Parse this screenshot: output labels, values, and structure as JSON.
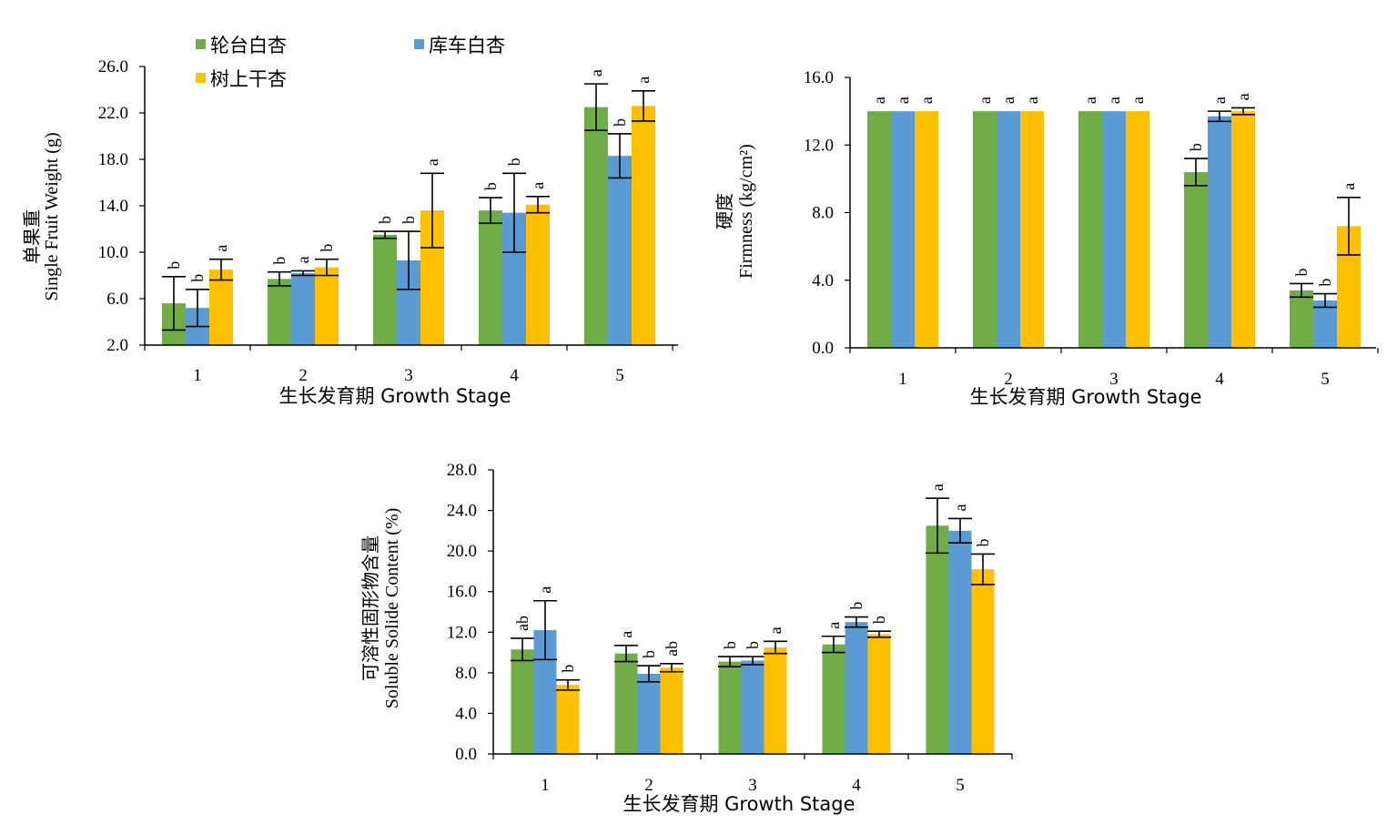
{
  "legend": [
    {
      "label": "轮台白杏",
      "color": "#70AD47"
    },
    {
      "label": "库车白杏",
      "color": "#5B9BD5"
    },
    {
      "label": "树上干杏",
      "color": "#FFC000"
    }
  ],
  "chart_data": [
    {
      "type": "bar",
      "categories": [
        "1",
        "2",
        "3",
        "4",
        "5"
      ],
      "xlabel": "生长发育期  Growth  Stage",
      "ylabel_cn": "单果重",
      "ylabel_en": "Single Fruit Weight (g)",
      "ylim": [
        2.0,
        26.0
      ],
      "yticks": [
        "2.0",
        "6.0",
        "10.0",
        "14.0",
        "18.0",
        "22.0",
        "26.0"
      ],
      "series": [
        {
          "name": "轮台白杏",
          "color": "#70AD47",
          "values": [
            5.6,
            7.7,
            11.5,
            13.6,
            22.5
          ],
          "errors": [
            2.3,
            0.6,
            0.3,
            1.1,
            2.0
          ],
          "labels": [
            "b",
            "b",
            "b",
            "b",
            "a"
          ]
        },
        {
          "name": "库车白杏",
          "color": "#5B9BD5",
          "values": [
            5.2,
            8.2,
            9.3,
            13.4,
            18.3
          ],
          "errors": [
            1.6,
            0.2,
            2.5,
            3.4,
            1.9
          ],
          "labels": [
            "b",
            "a",
            "b",
            "b",
            "b"
          ]
        },
        {
          "name": "树上干杏",
          "color": "#FFC000",
          "values": [
            8.5,
            8.7,
            13.6,
            14.1,
            22.6
          ],
          "errors": [
            0.9,
            0.7,
            3.2,
            0.7,
            1.3
          ],
          "labels": [
            "a",
            "b",
            "a",
            "a",
            "a"
          ]
        }
      ]
    },
    {
      "type": "bar",
      "categories": [
        "1",
        "2",
        "3",
        "4",
        "5"
      ],
      "xlabel": "生长发育期  Growth  Stage",
      "ylabel_cn": "硬度",
      "ylabel_en": "Firmness (kg/cm²)",
      "ylim": [
        0.0,
        16.0
      ],
      "yticks": [
        "0.0",
        "4.0",
        "8.0",
        "12.0",
        "16.0"
      ],
      "series": [
        {
          "name": "轮台白杏",
          "color": "#70AD47",
          "values": [
            14.0,
            14.0,
            14.0,
            10.4,
            3.4
          ],
          "errors": [
            0,
            0,
            0,
            0.8,
            0.4
          ],
          "labels": [
            "a",
            "a",
            "a",
            "b",
            "b"
          ]
        },
        {
          "name": "库车白杏",
          "color": "#5B9BD5",
          "values": [
            14.0,
            14.0,
            14.0,
            13.7,
            2.8
          ],
          "errors": [
            0,
            0,
            0,
            0.3,
            0.4
          ],
          "labels": [
            "a",
            "a",
            "a",
            "a",
            "b"
          ]
        },
        {
          "name": "树上干杏",
          "color": "#FFC000",
          "values": [
            14.0,
            14.0,
            14.0,
            14.0,
            7.2
          ],
          "errors": [
            0,
            0,
            0,
            0.2,
            1.7
          ],
          "labels": [
            "a",
            "a",
            "a",
            "a",
            "a"
          ]
        }
      ]
    },
    {
      "type": "bar",
      "categories": [
        "1",
        "2",
        "3",
        "4",
        "5"
      ],
      "xlabel": "生长发育期  Growth  Stage",
      "ylabel_cn": "可溶性固形物含量",
      "ylabel_en": "Soluble Solide Content (%)",
      "ylim": [
        0.0,
        28.0
      ],
      "yticks": [
        "0.0",
        "4.0",
        "8.0",
        "12.0",
        "16.0",
        "20.0",
        "24.0",
        "28.0"
      ],
      "series": [
        {
          "name": "轮台白杏",
          "color": "#70AD47",
          "values": [
            10.3,
            9.9,
            9.1,
            10.8,
            22.5
          ],
          "errors": [
            1.1,
            0.8,
            0.5,
            0.8,
            2.7
          ],
          "labels": [
            "ab",
            "a",
            "b",
            "a",
            "a"
          ]
        },
        {
          "name": "库车白杏",
          "color": "#5B9BD5",
          "values": [
            12.2,
            7.9,
            9.2,
            13.0,
            22.0
          ],
          "errors": [
            2.9,
            0.8,
            0.4,
            0.5,
            1.2
          ],
          "labels": [
            "a",
            "b",
            "b",
            "b",
            "a"
          ]
        },
        {
          "name": "树上干杏",
          "color": "#FFC000",
          "values": [
            6.8,
            8.5,
            10.5,
            11.8,
            18.2
          ],
          "errors": [
            0.5,
            0.4,
            0.6,
            0.3,
            1.5
          ],
          "labels": [
            "b",
            "ab",
            "a",
            "b",
            "b"
          ]
        }
      ]
    }
  ]
}
